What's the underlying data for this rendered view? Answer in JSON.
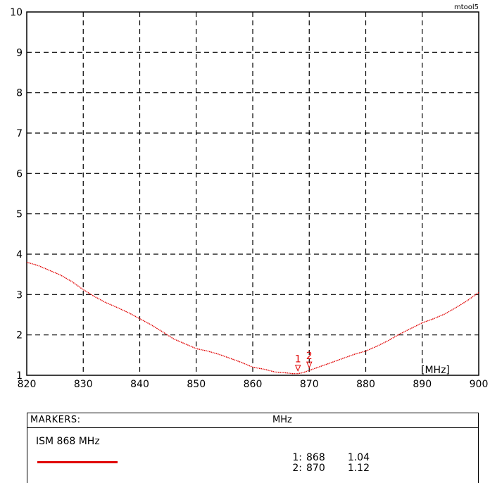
{
  "chart_data": {
    "type": "line",
    "watermark": "mtool5",
    "xlabel": "[MHz]",
    "xlim": [
      820,
      900
    ],
    "ylim": [
      1,
      10
    ],
    "xticks": [
      820,
      830,
      840,
      850,
      860,
      870,
      880,
      890,
      900
    ],
    "yticks": [
      1,
      2,
      3,
      4,
      5,
      6,
      7,
      8,
      9,
      10
    ],
    "grid": true,
    "series": [
      {
        "color": "#e00000",
        "x": [
          820,
          822,
          824,
          826,
          828,
          830,
          832,
          834,
          836,
          838,
          840,
          842,
          844,
          846,
          848,
          850,
          852,
          854,
          856,
          858,
          860,
          862,
          864,
          866,
          867,
          868,
          869,
          870,
          872,
          874,
          876,
          878,
          880,
          882,
          884,
          886,
          888,
          890,
          892,
          894,
          896,
          898,
          900
        ],
        "y": [
          3.8,
          3.72,
          3.6,
          3.48,
          3.32,
          3.12,
          2.95,
          2.8,
          2.68,
          2.55,
          2.4,
          2.25,
          2.08,
          1.9,
          1.78,
          1.66,
          1.6,
          1.52,
          1.42,
          1.32,
          1.2,
          1.15,
          1.08,
          1.06,
          1.04,
          1.04,
          1.07,
          1.12,
          1.22,
          1.32,
          1.42,
          1.52,
          1.6,
          1.72,
          1.86,
          2.02,
          2.16,
          2.3,
          2.4,
          2.52,
          2.68,
          2.85,
          3.05
        ]
      }
    ],
    "markers": [
      {
        "id": "1",
        "x": 868,
        "y": 1.04
      },
      {
        "id": "2",
        "x": 870,
        "y": 1.12
      }
    ]
  },
  "markers_panel": {
    "title": "MARKERS:",
    "unit": "MHz",
    "legend_name": "ISM 868 MHz",
    "legend_color": "#e00000",
    "rows": [
      {
        "id": "1:",
        "freq": "868",
        "value": "1.04"
      },
      {
        "id": "2:",
        "freq": "870",
        "value": "1.12"
      }
    ]
  }
}
